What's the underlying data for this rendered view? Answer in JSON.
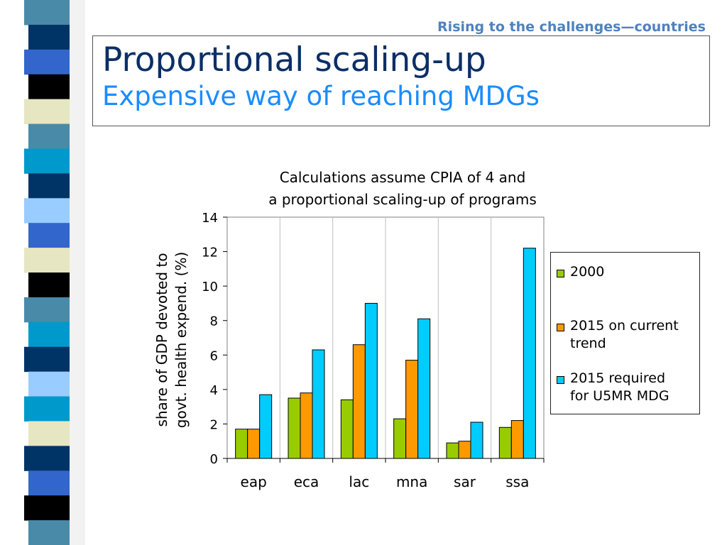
{
  "slide": {
    "tagline": "Rising to the challenges—countries",
    "title": "Proportional scaling-up",
    "subtitle": "Expensive way of reaching MDGs"
  },
  "colors": {
    "tagline": "#4f81bd",
    "title": "#0b2f66",
    "subtitle": "#1a8cff"
  },
  "decoration": {
    "strip_colors": [
      "#4a8aa9",
      "#003366",
      "#3366cc",
      "#000000",
      "#e6e6c2",
      "#4a8aa9",
      "#0099cc",
      "#003366",
      "#99ccff",
      "#3366cc",
      "#e6e6c2",
      "#000000",
      "#4a8aa9",
      "#0099cc",
      "#003366",
      "#99ccff",
      "#0099cc",
      "#e6e6c2",
      "#003366",
      "#3366cc",
      "#000000",
      "#4a8aa9"
    ]
  },
  "chart_data": {
    "type": "bar",
    "title": "Calculations assume CPIA of 4 and\na proportional scaling-up of programs",
    "ylabel": "share of GDP devoted to\ngovt. health expend. (%)",
    "xlabel": "",
    "categories": [
      "eap",
      "eca",
      "lac",
      "mna",
      "sar",
      "ssa"
    ],
    "ylim": [
      0,
      14
    ],
    "yticks": [
      0,
      2,
      4,
      6,
      8,
      10,
      12,
      14
    ],
    "grid": "vertical lines between categories",
    "legend_position": "right",
    "series": [
      {
        "name": "2000",
        "color": "#99cc00",
        "values": [
          1.7,
          3.5,
          3.4,
          2.3,
          0.9,
          1.8
        ]
      },
      {
        "name": "2015 on current trend",
        "color": "#ff9900",
        "values": [
          1.7,
          3.8,
          6.6,
          5.7,
          1.0,
          2.2
        ]
      },
      {
        "name": "2015 required for U5MR MDG",
        "color": "#00ccff",
        "values": [
          3.7,
          6.3,
          9.0,
          8.1,
          2.1,
          12.2
        ]
      }
    ]
  }
}
